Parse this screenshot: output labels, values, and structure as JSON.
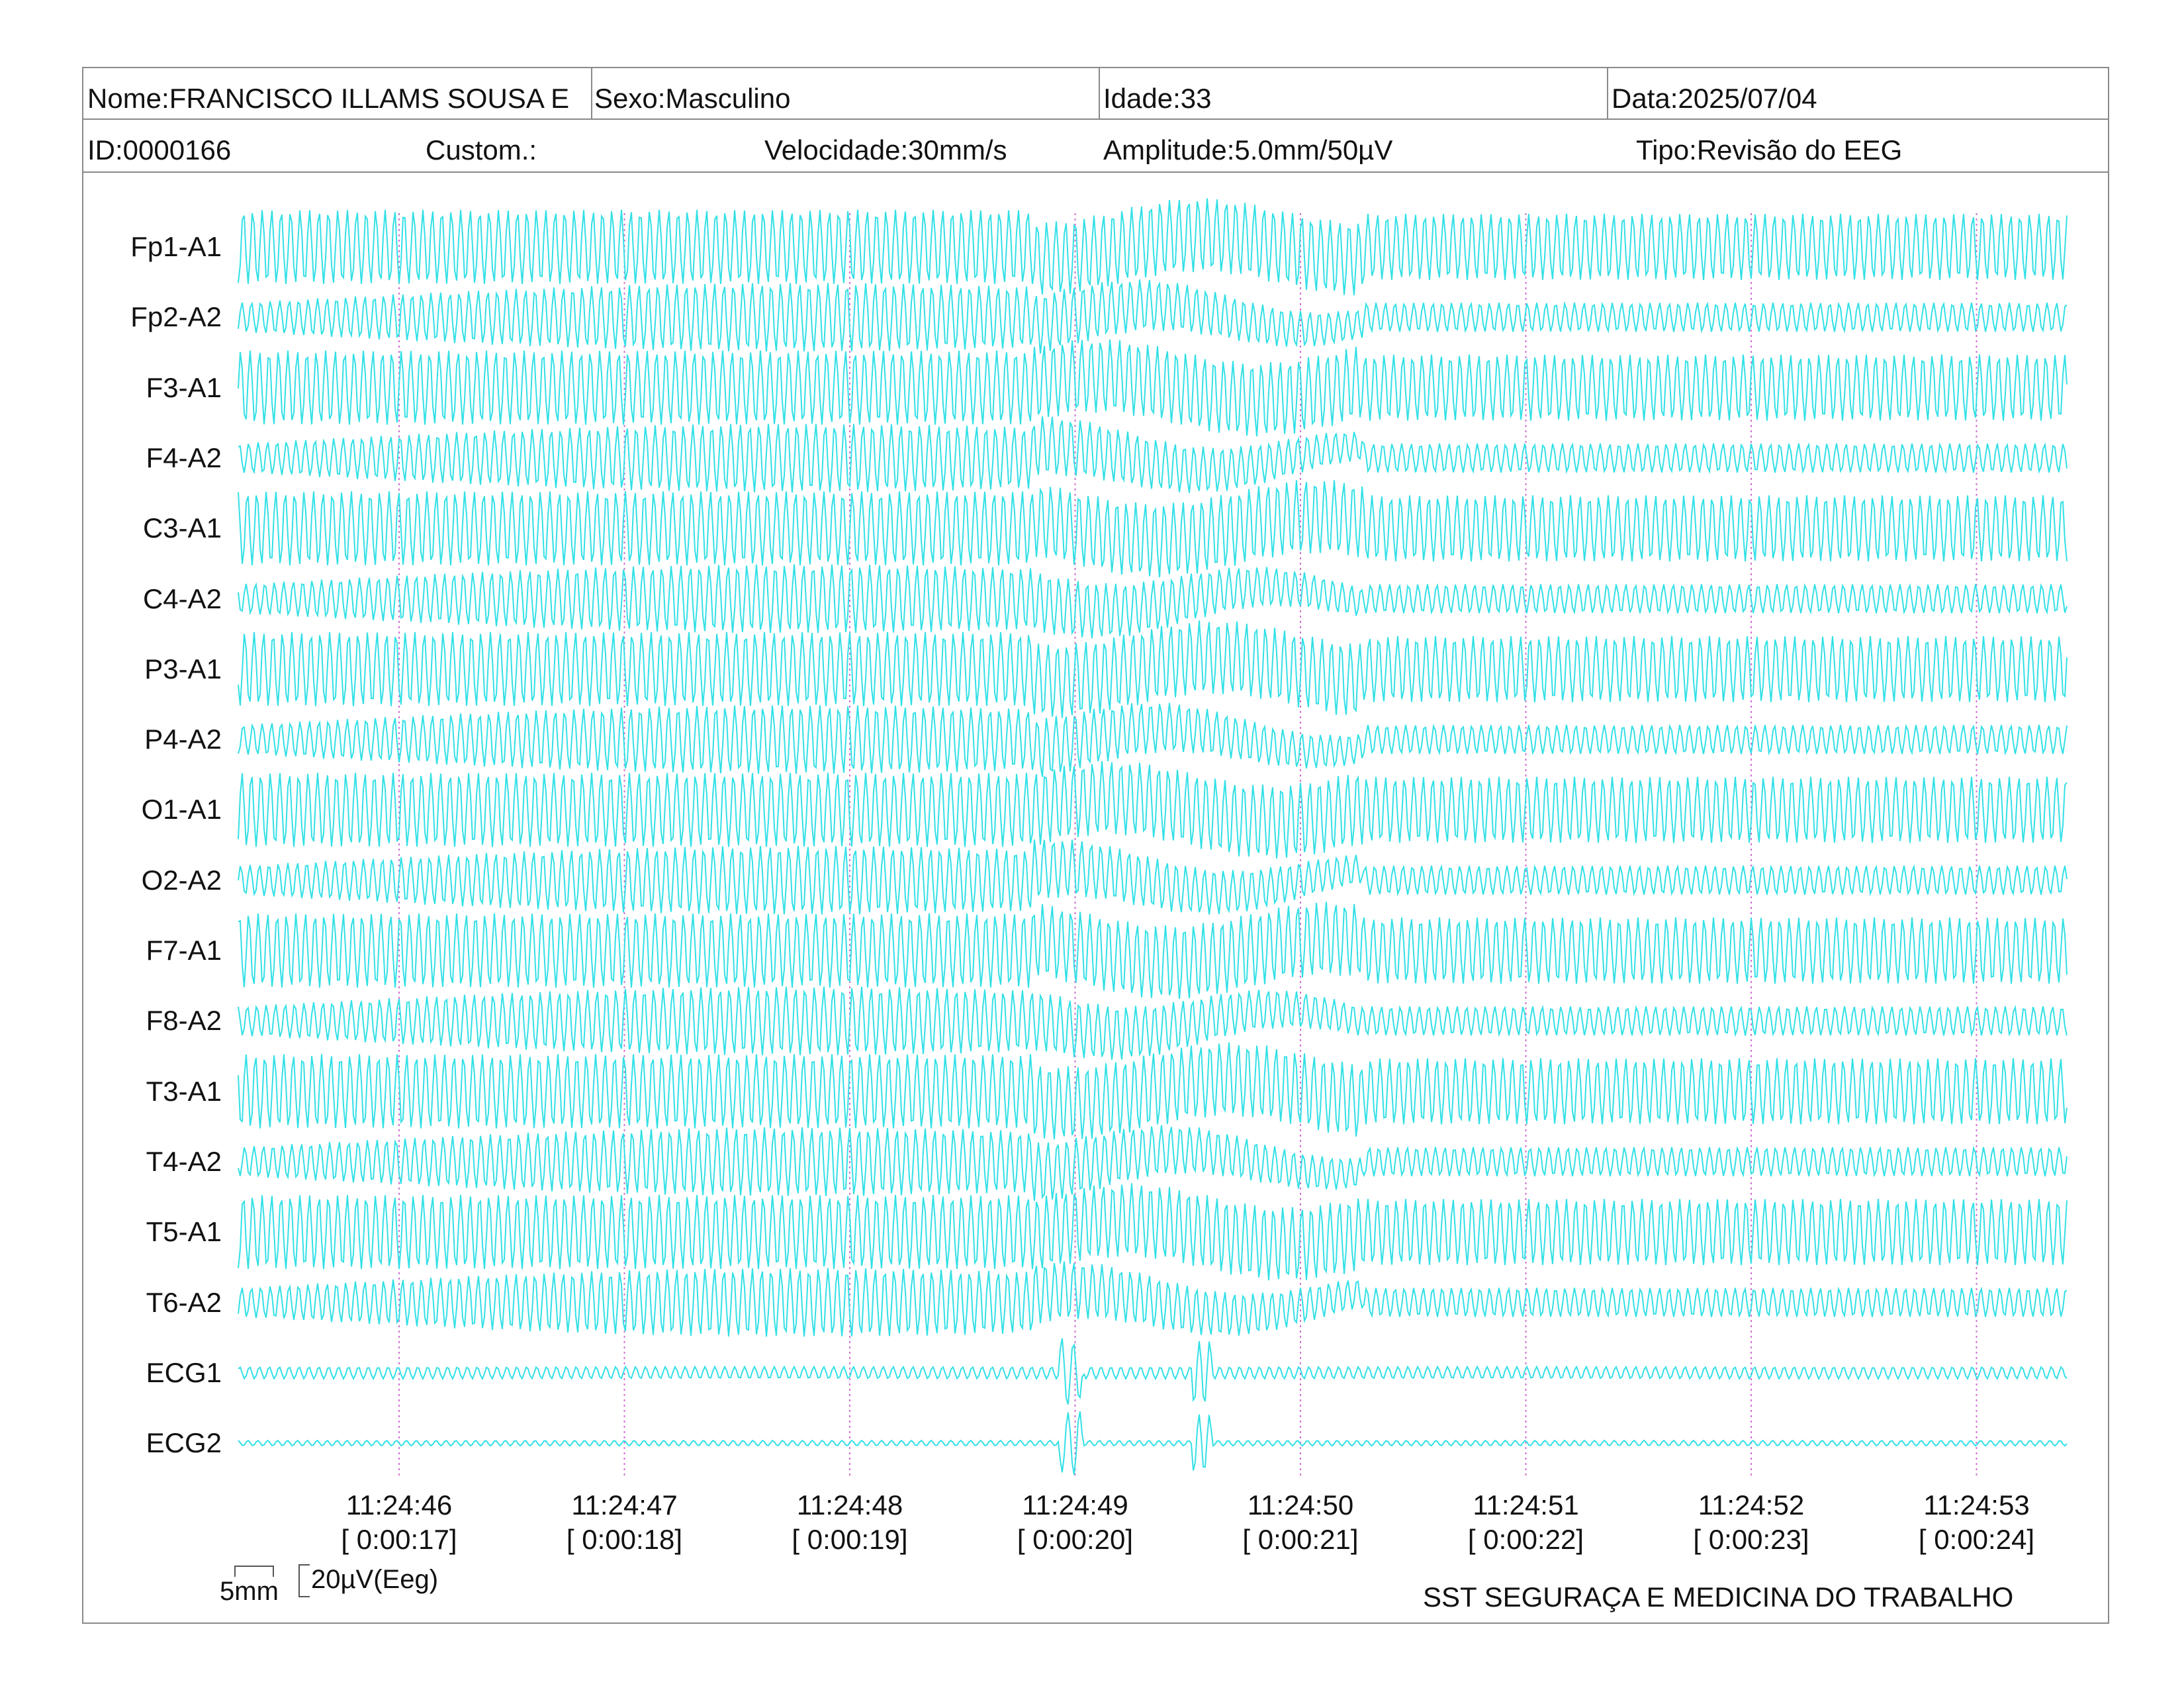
{
  "header": {
    "nome": "Nome:FRANCISCO ILLAMS SOUSA E",
    "sexo": "Sexo:Masculino",
    "idade": "Idade:33",
    "data": "Data:2025/07/04",
    "id": "ID:0000166",
    "custom": "Custom.:",
    "velocidade": "Velocidade:30mm/s",
    "amplitude": "Amplitude:5.0mm/50µV",
    "tipo": "Tipo:Revisão do EEG"
  },
  "channels": [
    {
      "label": "Fp1-A1"
    },
    {
      "label": "Fp2-A2"
    },
    {
      "label": "F3-A1"
    },
    {
      "label": "F4-A2"
    },
    {
      "label": "C3-A1"
    },
    {
      "label": "C4-A2"
    },
    {
      "label": "P3-A1"
    },
    {
      "label": "P4-A2"
    },
    {
      "label": "O1-A1"
    },
    {
      "label": "O2-A2"
    },
    {
      "label": "F7-A1"
    },
    {
      "label": "F8-A2"
    },
    {
      "label": "T3-A1"
    },
    {
      "label": "T4-A2"
    },
    {
      "label": "T5-A1"
    },
    {
      "label": "T6-A2"
    },
    {
      "label": "ECG1"
    },
    {
      "label": "ECG2"
    }
  ],
  "time_markers": [
    {
      "clock": "11:24:46",
      "elapsed": "[ 0:00:17]"
    },
    {
      "clock": "11:24:47",
      "elapsed": "[ 0:00:18]"
    },
    {
      "clock": "11:24:48",
      "elapsed": "[ 0:00:19]"
    },
    {
      "clock": "11:24:49",
      "elapsed": "[ 0:00:20]"
    },
    {
      "clock": "11:24:50",
      "elapsed": "[ 0:00:21]"
    },
    {
      "clock": "11:24:51",
      "elapsed": "[ 0:00:22]"
    },
    {
      "clock": "11:24:52",
      "elapsed": "[ 0:00:23]"
    },
    {
      "clock": "11:24:53",
      "elapsed": "[ 0:00:24]"
    }
  ],
  "scale": {
    "time": "5mm",
    "amplitude": "20µV(Eeg)"
  },
  "footer": {
    "organization": "SST SEGURAÇA E MEDICINA DO TRABALHO"
  },
  "colors": {
    "trace": "#33e0e6",
    "marker_line": "#d070d0",
    "border": "#8a8a8a"
  }
}
